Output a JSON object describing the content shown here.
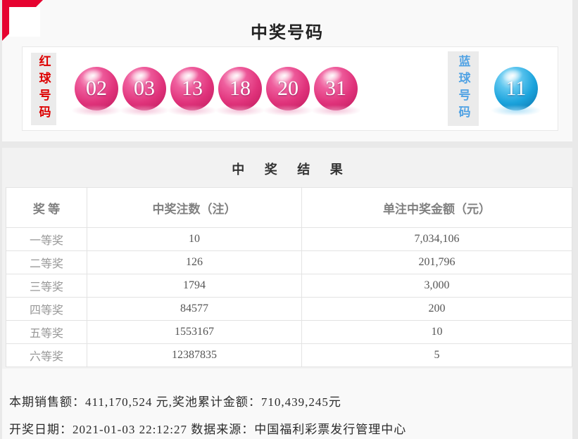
{
  "page": {
    "title": "中奖号码"
  },
  "winning_numbers": {
    "red_label": "红球号码",
    "red_balls": [
      "02",
      "03",
      "13",
      "18",
      "20",
      "31"
    ],
    "blue_label": "蓝球号码",
    "blue_balls": [
      "11"
    ]
  },
  "results": {
    "title": "中 奖 结 果",
    "headers": [
      "奖 等",
      "中奖注数（注）",
      "单注中奖金额（元）"
    ],
    "rows": [
      {
        "level": "一等奖",
        "count": "10",
        "amount": "7,034,106"
      },
      {
        "level": "二等奖",
        "count": "126",
        "amount": "201,796"
      },
      {
        "level": "三等奖",
        "count": "1794",
        "amount": "3,000"
      },
      {
        "level": "四等奖",
        "count": "84577",
        "amount": "200"
      },
      {
        "level": "五等奖",
        "count": "1553167",
        "amount": "10"
      },
      {
        "level": "六等奖",
        "count": "12387835",
        "amount": "5"
      }
    ]
  },
  "summary": {
    "sales_line": "本期销售额：411,170,524 元,奖池累计金额：710,439,245元",
    "date_line": "开奖日期：2021-01-03 22:12:27 数据来源：中国福利彩票发行管理中心"
  },
  "colors": {
    "ribbon_red": "#e60330",
    "red_label_text": "#dd0000",
    "blue_label_text": "#52a3e4",
    "red_ball": "#e0337b",
    "blue_ball": "#1ba3dc",
    "page_background": "#e9e9e9",
    "card_background": "#f9f9f9",
    "table_border": "#e3e3e3"
  }
}
